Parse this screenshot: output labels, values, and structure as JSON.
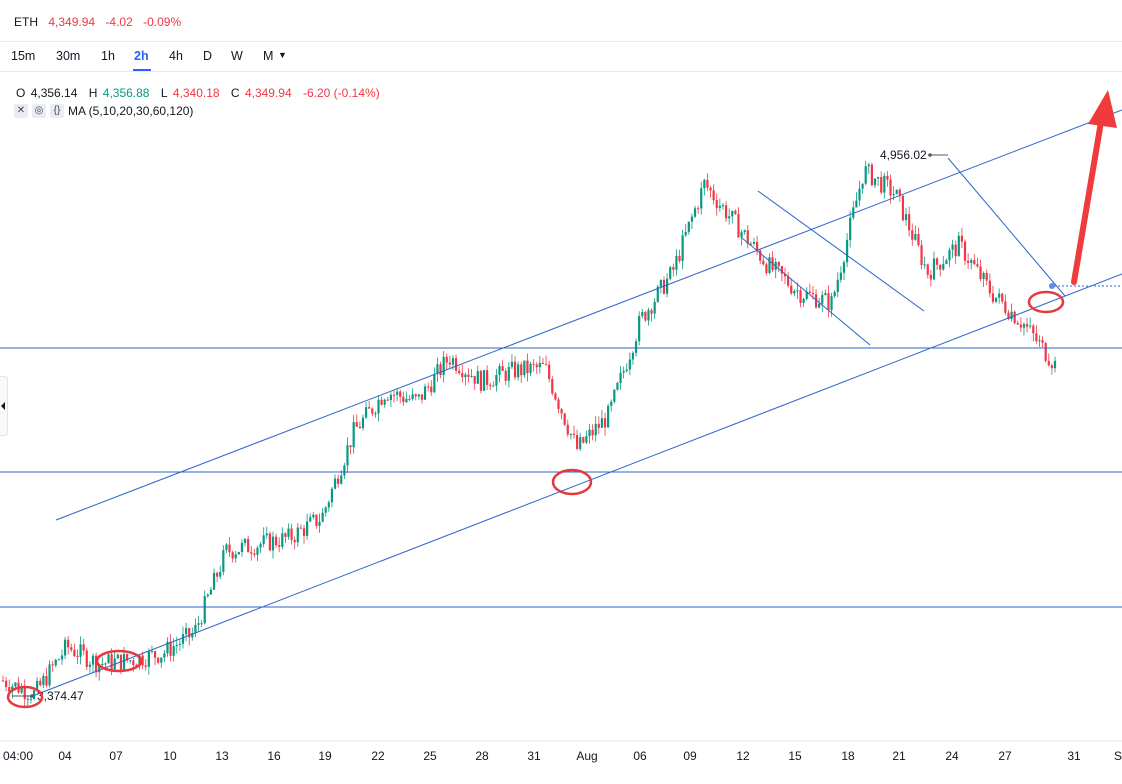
{
  "header": {
    "symbol": "ETH",
    "price": "4,349.94",
    "change": "-4.02",
    "change_pct": "-0.09%",
    "down_color": "#f23645",
    "up_color": "#089981"
  },
  "timeframes": [
    "15m",
    "30m",
    "1h",
    "2h",
    "4h",
    "D",
    "W",
    "M"
  ],
  "active_timeframe": "2h",
  "ohlc": {
    "o_label": "O",
    "o": "4,356.14",
    "h_label": "H",
    "h": "4,356.88",
    "l_label": "L",
    "l": "4,340.18",
    "c_label": "C",
    "c": "4,349.94",
    "change": "-6.20 (-0.14%)"
  },
  "indicator": {
    "label": "MA (5,10,20,30,60,120)"
  },
  "chart_data": {
    "type": "candlestick",
    "x_tick_labels": [
      "04:00",
      "04",
      "07",
      "10",
      "13",
      "16",
      "19",
      "22",
      "25",
      "28",
      "31",
      "Aug",
      "06",
      "09",
      "12",
      "15",
      "18",
      "21",
      "24",
      "27",
      "31",
      "S"
    ],
    "annotations": {
      "high_label": "4,956.02",
      "low_label": "3,374.47"
    },
    "approx_closes": [
      3420,
      3380,
      3520,
      3470,
      3480,
      3500,
      3560,
      3800,
      3820,
      3840,
      3900,
      4150,
      4270,
      4240,
      4370,
      4300,
      4330,
      4340,
      4100,
      4200,
      4480,
      4620,
      4880,
      4760,
      4640,
      4560,
      4530,
      4920,
      4850,
      4620,
      4700,
      4560,
      4470,
      4350
    ],
    "colors": {
      "up": "#089981",
      "down": "#f23645",
      "lines": "#2a64c9",
      "marker": "#e8383d"
    },
    "grid": false
  }
}
